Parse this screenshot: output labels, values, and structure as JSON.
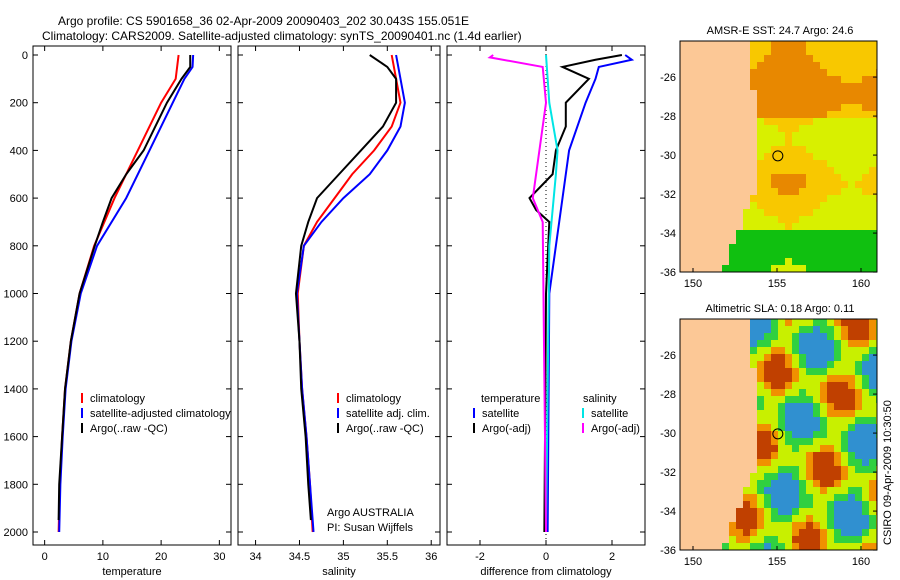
{
  "title": {
    "line1": "Argo profile: CS 5901658_36 02-Apr-2009 20090403_202 30.043S 155.051E",
    "line2": "Climatology: CARS2009. Satellite-adjusted climatology: synTS_20090401.nc (1.4d earlier)"
  },
  "credit": "Argo AUSTRALIA",
  "pi": "PI: Susan Wijffels",
  "stamp": "CSIRO 09-Apr-2009 10:30:50",
  "colors": {
    "clim": "#ff0000",
    "sat": "#0000ff",
    "argo": "#000000",
    "sal_sat": "#00e5e5",
    "sal_argo": "#ff00ff"
  },
  "chart_data": [
    {
      "type": "line",
      "xlabel": "temperature",
      "xlim": [
        -2,
        32
      ],
      "ylim": [
        2050,
        0
      ],
      "xticks": [
        "0",
        "10",
        "20",
        "30"
      ],
      "xtickv": [
        0,
        10,
        20,
        30
      ],
      "yticks": [
        "0",
        "200",
        "400",
        "600",
        "800",
        "1000",
        "1200",
        "1400",
        "1600",
        "1800",
        "2000"
      ],
      "legend": [
        "climatology",
        "satellite-adjusted climatology",
        "Argo(..raw -QC)"
      ],
      "series": [
        {
          "name": "climatology",
          "depth": [
            0,
            100,
            200,
            400,
            600,
            800,
            1000,
            1200,
            1400,
            1600,
            1800,
            2000
          ],
          "values": [
            23,
            22.5,
            20,
            16,
            12,
            8.5,
            6,
            4.5,
            3.5,
            3,
            2.6,
            2.4
          ]
        },
        {
          "name": "satellite",
          "depth": [
            0,
            50,
            100,
            200,
            400,
            600,
            800,
            1000,
            1200,
            1400,
            1600,
            1800,
            2000
          ],
          "values": [
            25.5,
            25.4,
            24,
            22,
            18,
            14,
            9,
            6.2,
            4.6,
            3.6,
            3.1,
            2.7,
            2.5
          ]
        },
        {
          "name": "argo",
          "depth": [
            0,
            50,
            100,
            200,
            400,
            500,
            600,
            700,
            800,
            1000,
            1200,
            1400,
            1600,
            1800,
            1950
          ],
          "values": [
            25,
            25,
            23.5,
            21,
            17,
            14,
            11.5,
            10,
            8.6,
            6,
            4.5,
            3.5,
            3,
            2.5,
            2.4
          ]
        }
      ]
    },
    {
      "type": "line",
      "xlabel": "salinity",
      "xlim": [
        33.8,
        36.1
      ],
      "ylim": [
        2050,
        0
      ],
      "xticks": [
        "34",
        "34.5",
        "35",
        "35.5",
        "36"
      ],
      "xtickv": [
        34,
        34.5,
        35,
        35.5,
        36
      ],
      "legend": [
        "climatology",
        "satellite adj. clim.",
        "Argo(..raw -QC)"
      ],
      "series": [
        {
          "name": "climatology",
          "depth": [
            0,
            100,
            200,
            300,
            400,
            500,
            600,
            700,
            800,
            1000,
            1200,
            1400,
            1600,
            1800,
            2000
          ],
          "values": [
            35.55,
            35.6,
            35.65,
            35.55,
            35.35,
            35.1,
            34.9,
            34.7,
            34.55,
            34.48,
            34.5,
            34.53,
            34.58,
            34.62,
            34.65
          ]
        },
        {
          "name": "satellite",
          "depth": [
            0,
            100,
            200,
            300,
            400,
            500,
            600,
            700,
            800,
            1000,
            1200,
            1400,
            1600,
            1800,
            2000
          ],
          "values": [
            35.6,
            35.65,
            35.7,
            35.65,
            35.5,
            35.3,
            35.0,
            34.75,
            34.55,
            34.47,
            34.5,
            34.53,
            34.58,
            34.62,
            34.66
          ]
        },
        {
          "name": "argo",
          "depth": [
            0,
            50,
            100,
            200,
            300,
            400,
            500,
            600,
            700,
            800,
            1000,
            1200,
            1400,
            1600,
            1800,
            1950
          ],
          "values": [
            35.3,
            35.5,
            35.6,
            35.6,
            35.45,
            35.2,
            34.95,
            34.7,
            34.6,
            34.52,
            34.46,
            34.5,
            34.52,
            34.57,
            34.6,
            34.63
          ]
        }
      ]
    },
    {
      "type": "line",
      "xlabel": "difference from climatology",
      "xlim": [
        -3,
        3
      ],
      "ylim": [
        2050,
        0
      ],
      "xticks": [
        "-2",
        "0",
        "2"
      ],
      "xtickv": [
        -2,
        0,
        2
      ],
      "legend_headers": [
        "temperature",
        "salinity"
      ],
      "legend": [
        "satellite",
        "Argo(-adj)",
        "satellite",
        "Argo(-adj)"
      ],
      "series": [
        {
          "name": "temperature satellite",
          "depth": [
            0,
            20,
            50,
            100,
            200,
            400,
            600,
            700,
            800,
            1000,
            2000
          ],
          "values": [
            2.4,
            2.6,
            1.6,
            1.5,
            1.2,
            0.7,
            0.5,
            0.4,
            0.3,
            0.1,
            0.05
          ]
        },
        {
          "name": "temperature Argo(-adj)",
          "depth": [
            0,
            20,
            50,
            100,
            200,
            300,
            400,
            500,
            600,
            650,
            700,
            1000,
            2000
          ],
          "values": [
            2.3,
            1.5,
            0.5,
            1.3,
            0.6,
            0.6,
            0.3,
            0.2,
            -0.5,
            -0.3,
            0.1,
            0,
            -0.05
          ]
        },
        {
          "name": "salinity satellite",
          "depth": [
            0,
            200,
            400,
            500,
            800,
            2000
          ],
          "values": [
            0,
            0.1,
            0.35,
            0.3,
            0.1,
            0
          ]
        },
        {
          "name": "salinity Argo(-adj)",
          "depth": [
            0,
            10,
            50,
            200,
            600,
            700,
            2000
          ],
          "values": [
            -1.6,
            -1.7,
            -0.1,
            0,
            -0.4,
            -0.1,
            0
          ]
        }
      ]
    }
  ],
  "maps": [
    {
      "title": "AMSR-E SST: 24.7 Argo: 24.6",
      "xticks": [
        "150",
        "155",
        "160"
      ],
      "yticks": [
        "-26",
        "-28",
        "-30",
        "-32",
        "-34",
        "-36"
      ]
    },
    {
      "title": "Altimetric SLA: 0.18 Argo: 0.11",
      "xticks": [
        "150",
        "155",
        "160"
      ],
      "yticks": [
        "-26",
        "-28",
        "-30",
        "-32",
        "-34",
        "-36"
      ]
    }
  ]
}
